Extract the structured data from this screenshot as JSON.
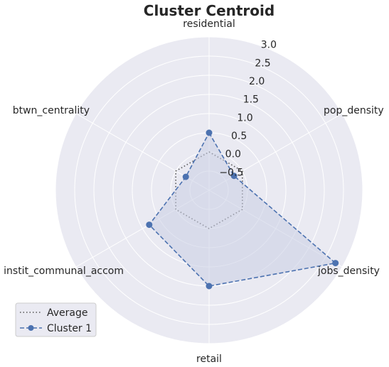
{
  "chart_data": {
    "type": "radar",
    "title": "Cluster Centroid",
    "categories": [
      "residential",
      "pop_density",
      "jobs_density",
      "retail",
      "instit_communal_accom",
      "btwn_centrality"
    ],
    "rlim": [
      -1.0,
      3.0
    ],
    "r_ticks": [
      -0.5,
      0.0,
      0.5,
      1.0,
      1.5,
      2.0,
      2.5,
      3.0
    ],
    "r_tick_labels": [
      "−0.5",
      "0.0",
      "0.5",
      "1.0",
      "1.5",
      "2.0",
      "2.5",
      "3.0"
    ],
    "grid": true,
    "legend_position": "lower-left",
    "series": [
      {
        "name": "Average",
        "values": [
          0.0,
          0.0,
          0.0,
          0.0,
          0.0,
          0.0
        ],
        "color": "#555555",
        "linestyle": "dotted",
        "marker": "none",
        "fill": false
      },
      {
        "name": "Cluster 1",
        "values": [
          0.5,
          -0.25,
          2.8,
          1.5,
          0.8,
          -0.3
        ],
        "color": "#4c72b0",
        "linestyle": "dashed",
        "marker": "circle",
        "fill": true
      }
    ],
    "colors": {
      "background": "#eaeaf2",
      "grid": "#ffffff",
      "fill": "#c9cde4"
    }
  }
}
